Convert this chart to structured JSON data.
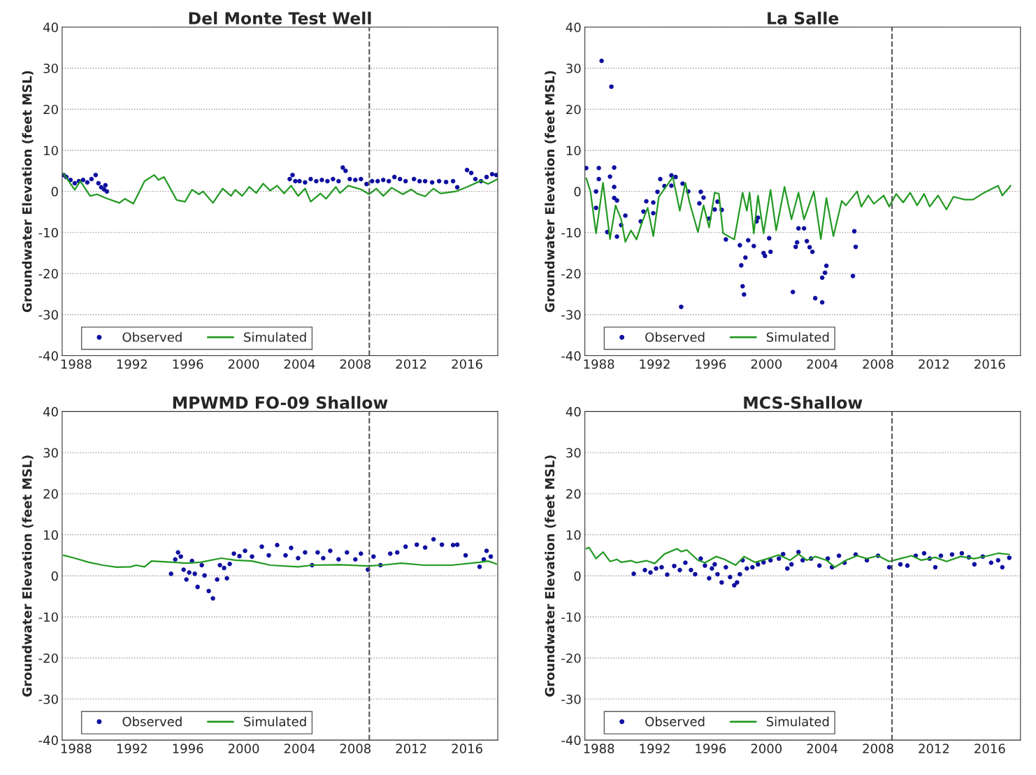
{
  "chart_data": [
    {
      "type": "line",
      "title": "Del Monte Test Well",
      "ylabel": "Groundwater Elevation (feet MSL)",
      "xlim": [
        1987,
        2018.2
      ],
      "xticks": [
        1988,
        1992,
        1996,
        2000,
        2004,
        2008,
        2012,
        2016
      ],
      "ylim": [
        -40,
        40
      ],
      "yticks": [
        -40,
        -30,
        -20,
        -10,
        0,
        10,
        20,
        30,
        40
      ],
      "grid": "y",
      "legend": "bottom left",
      "ref_lines": [
        {
          "axis": "x",
          "value": 2009,
          "color": "#555555",
          "line_style": "dashed"
        }
      ],
      "series": [
        {
          "name": "Observed",
          "type": "scatter",
          "marker": "circle",
          "color": "#1010a0",
          "x": [
            1987.1,
            1987.3,
            1987.6,
            1987.9,
            1988.2,
            1988.5,
            1988.8,
            1989.1,
            1989.4,
            1989.6,
            1989.8,
            1990.0,
            1990.1,
            1990.2,
            2003.3,
            2003.5,
            2003.7,
            2004.0,
            2004.4,
            2004.8,
            2005.2,
            2005.6,
            2006.0,
            2006.4,
            2006.8,
            2007.1,
            2007.3,
            2007.6,
            2008.0,
            2008.4,
            2008.8,
            2009.2,
            2009.6,
            2010.0,
            2010.4,
            2010.8,
            2011.2,
            2011.6,
            2012.2,
            2012.6,
            2013.0,
            2013.5,
            2014.0,
            2014.5,
            2015.0,
            2015.3,
            2016.0,
            2016.3,
            2016.6,
            2017.0,
            2017.4,
            2017.8,
            2018.1
          ],
          "values": [
            4.0,
            3.5,
            2.8,
            2.0,
            2.5,
            2.8,
            2.2,
            3.0,
            4.0,
            2.0,
            1.0,
            0.5,
            1.5,
            0.0,
            3.0,
            4.0,
            2.5,
            2.5,
            2.2,
            3.0,
            2.5,
            2.8,
            2.5,
            3.0,
            2.5,
            5.8,
            5.0,
            3.0,
            2.8,
            3.0,
            1.8,
            2.5,
            2.5,
            2.8,
            2.5,
            3.5,
            3.0,
            2.5,
            3.0,
            2.5,
            2.5,
            2.2,
            2.5,
            2.3,
            2.5,
            1.0,
            5.2,
            4.5,
            3.0,
            2.5,
            3.5,
            4.2,
            4.0
          ]
        },
        {
          "name": "Simulated",
          "color": "#229922",
          "x": [
            1987.1,
            1987.9,
            1988.3,
            1989.0,
            1989.5,
            1990.1,
            1991.1,
            1991.5,
            1992.1,
            1992.9,
            1993.6,
            1993.9,
            1994.3,
            1995.2,
            1995.8,
            1996.3,
            1996.8,
            1997.1,
            1997.8,
            1998.5,
            1999.1,
            1999.4,
            1999.9,
            2000.4,
            2000.9,
            2001.4,
            2001.9,
            2002.4,
            2002.9,
            2003.4,
            2003.9,
            2004.4,
            2004.8,
            2005.5,
            2005.9,
            2006.6,
            2006.9,
            2007.5,
            2008.4,
            2009.0,
            2009.5,
            2010.0,
            2010.6,
            2011.4,
            2012.0,
            2012.4,
            2013.0,
            2013.6,
            2014.1,
            2015.2,
            2016.0,
            2017.0,
            2017.5,
            2018.2
          ],
          "values": [
            4.3,
            0.4,
            2.5,
            -1.1,
            -0.7,
            -1.6,
            -2.8,
            -1.8,
            -3.0,
            2.5,
            4.0,
            2.8,
            3.5,
            -2.1,
            -2.5,
            0.4,
            -0.7,
            0,
            -2.8,
            0.7,
            -1.1,
            0.4,
            -1.1,
            1.1,
            -0.4,
            1.9,
            0.2,
            1.4,
            -0.5,
            1.4,
            -1.1,
            0.7,
            -2.5,
            -0.5,
            -1.8,
            1.1,
            -0.4,
            1.4,
            0.5,
            -0.7,
            0.7,
            -1.1,
            0.9,
            -0.7,
            0.5,
            -0.5,
            -1.2,
            0.7,
            -0.5,
            0,
            1.1,
            2.6,
            1.8,
            3.0
          ]
        }
      ]
    },
    {
      "type": "line",
      "title": "La Salle",
      "ylabel": "Groundwater Elevation (feet MSL)",
      "xlim": [
        1987,
        2018.2
      ],
      "xticks": [
        1988,
        1992,
        1996,
        2000,
        2004,
        2008,
        2012,
        2016
      ],
      "ylim": [
        -40,
        40
      ],
      "yticks": [
        -40,
        -30,
        -20,
        -10,
        0,
        10,
        20,
        30,
        40
      ],
      "grid": "y",
      "legend": "bottom left",
      "ref_lines": [
        {
          "axis": "x",
          "value": 2009,
          "color": "#555555",
          "line_style": "dashed"
        }
      ],
      "series": [
        {
          "name": "Observed",
          "type": "scatter",
          "marker": "circle",
          "color": "#1010a0",
          "x": [
            1987.1,
            1987.8,
            1987.8,
            1988.0,
            1988.0,
            1988.2,
            1988.6,
            1988.8,
            1988.9,
            1989.1,
            1989.1,
            1989.1,
            1989.3,
            1989.3,
            1989.6,
            1989.9,
            1991.0,
            1991.2,
            1991.4,
            1991.9,
            1991.9,
            1992.2,
            1992.4,
            1992.7,
            1993.2,
            1993.2,
            1993.5,
            1993.9,
            1994.0,
            1994.4,
            1995.2,
            1995.3,
            1995.5,
            1995.9,
            1996.3,
            1996.5,
            1996.8,
            1997.1,
            1998.1,
            1998.2,
            1998.3,
            1998.4,
            1998.5,
            1998.7,
            1999.1,
            1999.3,
            1999.4,
            1999.8,
            1999.9,
            2000.2,
            2000.3,
            2001.9,
            2002.1,
            2002.2,
            2002.3,
            2002.7,
            2002.9,
            2003.1,
            2003.3,
            2003.5,
            2004.0,
            2004.0,
            2004.2,
            2004.3,
            2006.2,
            2006.3,
            2006.4
          ],
          "values": [
            5.7,
            0,
            -4.0,
            5.7,
            3.0,
            31.8,
            -9.9,
            3.6,
            25.5,
            5.8,
            1.1,
            -1.6,
            -2.2,
            -11.0,
            -8.2,
            -5.9,
            -7.3,
            -4.9,
            -2.4,
            -2.7,
            -5.3,
            -0.1,
            3.0,
            1.3,
            1.4,
            3.9,
            3.5,
            -28.1,
            1.9,
            0,
            -2.9,
            -0.1,
            -1.5,
            -6.6,
            -4.4,
            -2.5,
            -4.5,
            -11.7,
            -13.1,
            -18.0,
            -23.1,
            -25.1,
            -16.1,
            -11.9,
            -13.3,
            -7.3,
            -6.4,
            -15.0,
            -15.7,
            -11.4,
            -14.7,
            -24.5,
            -13.5,
            -12.4,
            -9.0,
            -9.0,
            -12.1,
            -13.6,
            -14.7,
            -26.0,
            -27.0,
            -21.0,
            -19.8,
            -18.1,
            -20.6,
            -9.7,
            -13.5
          ]
        },
        {
          "name": "Simulated",
          "color": "#229922",
          "x": [
            1987.1,
            1987.4,
            1987.8,
            1988.3,
            1988.8,
            1989.2,
            1989.6,
            1989.9,
            1990.3,
            1990.7,
            1991.1,
            1991.5,
            1991.9,
            1992.3,
            1993.3,
            1993.8,
            1994.2,
            1994.5,
            1995.1,
            1995.5,
            1995.9,
            1996.3,
            1996.6,
            1996.9,
            1997.7,
            1998.3,
            1998.6,
            1998.8,
            1999.1,
            1999.4,
            1999.8,
            2000.3,
            2000.7,
            2001.3,
            2001.8,
            2002.3,
            2002.7,
            2003.4,
            2003.9,
            2004.3,
            2004.8,
            2005.4,
            2005.7,
            2006.5,
            2006.8,
            2007.3,
            2007.7,
            2008.4,
            2008.8,
            2009.3,
            2009.8,
            2010.3,
            2010.8,
            2011.3,
            2011.7,
            2012.3,
            2012.9,
            2013.4,
            2014.2,
            2014.8,
            2015.6,
            2016.6,
            2016.9,
            2017.5
          ],
          "values": [
            3.2,
            0,
            -10.2,
            2.1,
            -11.6,
            -3.4,
            -6.8,
            -12.3,
            -9.5,
            -11.7,
            -7.5,
            -4.0,
            -10.9,
            -1.3,
            3.5,
            -4.7,
            2.1,
            -2.7,
            -9.9,
            -3.4,
            -8.8,
            -0.3,
            -0.6,
            -10.2,
            -11.7,
            -0.3,
            -4.7,
            -0.3,
            -10.2,
            -1.0,
            -10.2,
            0.4,
            -9.5,
            1.1,
            -6.8,
            -0.3,
            -6.8,
            0,
            -11.6,
            -1.6,
            -10.9,
            -2.3,
            -3.4,
            0,
            -3.7,
            -1.0,
            -3.0,
            -1.0,
            -3.7,
            -0.6,
            -2.7,
            -0.3,
            -3.4,
            -0.6,
            -3.7,
            -1.0,
            -4.4,
            -1.3,
            -2.0,
            -2.0,
            -0.3,
            1.4,
            -1.0,
            1.4
          ]
        }
      ]
    },
    {
      "type": "line",
      "title": "MPWMD FO-09 Shallow",
      "ylabel": "Groundwater Elevation (feet MSL)",
      "xlim": [
        1987,
        2018.2
      ],
      "xticks": [
        1988,
        1992,
        1996,
        2000,
        2004,
        2008,
        2012,
        2016
      ],
      "ylim": [
        -40,
        40
      ],
      "yticks": [
        -40,
        -30,
        -20,
        -10,
        0,
        10,
        20,
        30,
        40
      ],
      "grid": "y",
      "legend": "bottom left",
      "ref_lines": [
        {
          "axis": "x",
          "value": 2009,
          "color": "#555555",
          "line_style": "dashed"
        }
      ],
      "series": [
        {
          "name": "Observed",
          "type": "scatter",
          "marker": "circle",
          "color": "#1010a0",
          "x": [
            1994.8,
            1995.1,
            1995.3,
            1995.5,
            1995.7,
            1995.9,
            1996.1,
            1996.3,
            1996.5,
            1996.7,
            1997.0,
            1997.2,
            1997.5,
            1997.8,
            1998.1,
            1998.3,
            1998.6,
            1998.8,
            1999.0,
            1999.3,
            1999.7,
            2000.1,
            2000.6,
            2001.3,
            2001.8,
            2002.4,
            2003.0,
            2003.4,
            2003.9,
            2004.4,
            2004.9,
            2005.3,
            2005.7,
            2006.2,
            2006.8,
            2007.4,
            2008.0,
            2008.4,
            2008.9,
            2009.3,
            2009.8,
            2010.5,
            2011.0,
            2011.6,
            2012.4,
            2013.0,
            2013.6,
            2014.2,
            2015.0,
            2015.3,
            2015.9,
            2016.9,
            2017.2,
            2017.4,
            2017.7
          ],
          "values": [
            0.5,
            4.0,
            5.7,
            4.7,
            1.5,
            -0.9,
            0.8,
            3.6,
            0.5,
            -2.7,
            2.6,
            0.1,
            -3.7,
            -5.5,
            -0.9,
            2.6,
            1.9,
            -0.6,
            2.9,
            5.4,
            4.8,
            6.1,
            4.7,
            7.1,
            5.0,
            7.5,
            5.0,
            6.8,
            4.3,
            5.7,
            2.6,
            5.7,
            4.3,
            6.1,
            4.0,
            5.7,
            4.0,
            5.4,
            1.5,
            4.7,
            2.6,
            5.4,
            5.7,
            7.1,
            7.6,
            6.9,
            8.9,
            7.6,
            7.5,
            7.6,
            5.0,
            2.2,
            4.0,
            6.1,
            4.7
          ]
        },
        {
          "name": "Simulated",
          "color": "#229922",
          "x": [
            1987.1,
            1987.9,
            1988.9,
            1989.9,
            1990.9,
            1991.9,
            1992.3,
            1992.9,
            1993.4,
            1994.5,
            1995.9,
            1996.9,
            1998.4,
            1999.4,
            2000.6,
            2001.9,
            2003.9,
            2004.9,
            2006.9,
            2008.9,
            2009.9,
            2011.3,
            2012.9,
            2014.9,
            2016.9,
            2017.5,
            2018.1
          ],
          "values": [
            5.0,
            4.3,
            3.3,
            2.6,
            2.1,
            2.2,
            2.6,
            2.2,
            3.6,
            3.4,
            3.1,
            3.3,
            4.3,
            3.8,
            3.6,
            2.6,
            2.2,
            2.6,
            2.7,
            2.4,
            2.6,
            3.1,
            2.6,
            2.6,
            3.3,
            3.6,
            2.9
          ]
        }
      ]
    },
    {
      "type": "line",
      "title": "MCS-Shallow",
      "ylabel": "Groundwater Elevation (feet MSL)",
      "xlim": [
        1987,
        2018.2
      ],
      "xticks": [
        1988,
        1992,
        1996,
        2000,
        2004,
        2008,
        2012,
        2016
      ],
      "ylim": [
        -40,
        40
      ],
      "yticks": [
        -40,
        -30,
        -20,
        -10,
        0,
        10,
        20,
        30,
        40
      ],
      "grid": "y",
      "legend": "bottom left",
      "ref_lines": [
        {
          "axis": "x",
          "value": 2009,
          "color": "#555555",
          "line_style": "dashed"
        }
      ],
      "series": [
        {
          "name": "Observed",
          "type": "scatter",
          "marker": "circle",
          "color": "#1010a0",
          "x": [
            1990.5,
            1991.3,
            1991.7,
            1992.1,
            1992.5,
            1992.9,
            1993.4,
            1993.8,
            1994.2,
            1994.6,
            1994.9,
            1995.3,
            1995.6,
            1995.9,
            1996.1,
            1996.3,
            1996.5,
            1996.8,
            1997.1,
            1997.4,
            1997.7,
            1997.9,
            1998.1,
            1998.3,
            1998.6,
            1999.0,
            1999.4,
            1999.8,
            2000.3,
            2000.9,
            2001.2,
            2001.5,
            2001.8,
            2002.3,
            2002.6,
            2003.2,
            2003.8,
            2004.4,
            2004.7,
            2005.2,
            2005.6,
            2006.4,
            2007.2,
            2008.0,
            2008.8,
            2009.6,
            2010.1,
            2010.7,
            2011.3,
            2011.7,
            2012.1,
            2012.5,
            2013.3,
            2014.0,
            2014.5,
            2014.9,
            2015.5,
            2016.1,
            2016.6,
            2016.9,
            2017.4
          ],
          "values": [
            0.5,
            1.4,
            0.8,
            1.8,
            2.1,
            0.3,
            2.4,
            1.4,
            3.2,
            1.4,
            0.4,
            4.2,
            2.5,
            -0.6,
            1.8,
            2.8,
            0.4,
            -1.6,
            2.1,
            -0.3,
            -2.3,
            -1.6,
            0.4,
            3.8,
            1.8,
            2.1,
            2.8,
            3.3,
            3.8,
            4.2,
            5.3,
            1.8,
            2.8,
            5.8,
            3.8,
            4.2,
            2.5,
            4.2,
            2.1,
            4.9,
            3.2,
            5.2,
            3.8,
            4.9,
            2.1,
            2.8,
            2.5,
            4.9,
            5.5,
            4.2,
            2.1,
            4.9,
            5.2,
            5.5,
            4.5,
            2.8,
            4.7,
            3.2,
            3.8,
            2.1,
            4.4
          ]
        },
        {
          "name": "Simulated",
          "color": "#229922",
          "x": [
            1987.1,
            1987.3,
            1987.8,
            1988.3,
            1988.8,
            1989.3,
            1989.6,
            1990.3,
            1990.7,
            1991.4,
            1992.0,
            1992.7,
            1993.6,
            1993.9,
            1994.3,
            1995.1,
            1995.6,
            1996.4,
            1997.0,
            1997.8,
            1998.4,
            1999.2,
            2000.1,
            2000.9,
            2001.7,
            2002.3,
            2002.9,
            2003.5,
            2004.3,
            2004.9,
            2005.7,
            2006.5,
            2007.2,
            2008.0,
            2008.8,
            2009.6,
            2010.4,
            2011.1,
            2012.1,
            2012.9,
            2013.9,
            2014.9,
            2015.9,
            2016.6,
            2017.4
          ],
          "values": [
            6.6,
            6.9,
            4.2,
            5.8,
            3.5,
            4.0,
            3.3,
            3.7,
            3.2,
            3.7,
            3.0,
            5.3,
            6.6,
            5.9,
            6.3,
            3.8,
            3.2,
            4.7,
            4.0,
            2.6,
            4.7,
            3.3,
            4.2,
            5.1,
            3.8,
            5.3,
            3.8,
            4.7,
            3.8,
            2.1,
            3.8,
            4.9,
            4.2,
            4.9,
            3.5,
            4.2,
            4.9,
            3.8,
            4.5,
            3.5,
            4.7,
            4.2,
            4.9,
            5.5,
            5.2
          ]
        }
      ]
    }
  ]
}
